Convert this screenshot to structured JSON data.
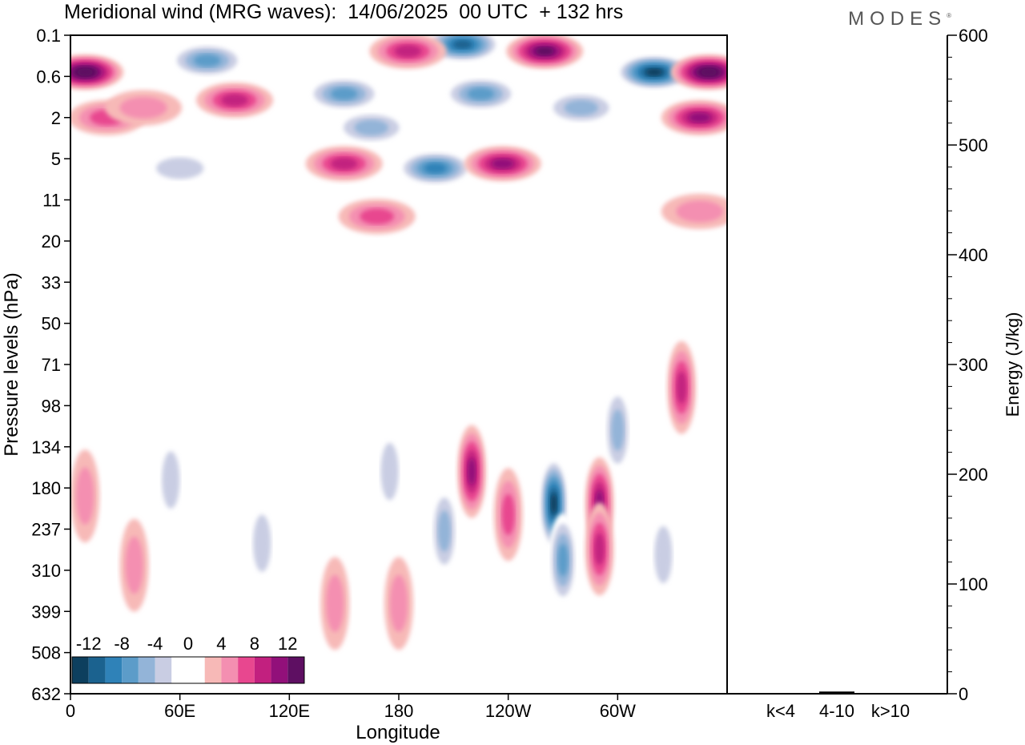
{
  "title": "Meridional wind (MRG waves):  14/06/2025  00 UTC  + 132 hrs",
  "brand": "MODES",
  "brand_mark": "®",
  "colors": {
    "neg_strong": "#0d4a6a",
    "neg_mid": "#2f82b8",
    "neg_light": "#c9cde3",
    "pos_light": "#f7b9b7",
    "pos_mid": "#e8478f",
    "pos_strong": "#6a0f66",
    "frame": "#000000"
  },
  "chart_data": [
    {
      "type": "heatmap",
      "title": "Meridional wind (MRG waves):  14/06/2025  00 UTC  + 132 hrs",
      "xlabel": "Longitude",
      "ylabel": "Pressure levels (hPa)",
      "x_ticks": [
        "0",
        "60E",
        "120E",
        "180",
        "120W",
        "60W"
      ],
      "y_ticks": [
        "0.1",
        "0.6",
        "2",
        "5",
        "11",
        "20",
        "33",
        "50",
        "71",
        "98",
        "134",
        "180",
        "237",
        "310",
        "399",
        "508",
        "632"
      ],
      "colorbar": {
        "labels": [
          "-12",
          "-8",
          "-4",
          "0",
          "4",
          "8",
          "12"
        ],
        "levels": [
          -14,
          -12,
          -10,
          -8,
          -6,
          -4,
          -2,
          2,
          4,
          6,
          8,
          10,
          12,
          14
        ],
        "colors": [
          "#0d3f5e",
          "#1b628f",
          "#2f82b8",
          "#5c9cc9",
          "#93b4d8",
          "#c9cde3",
          "#ffffff",
          "#ffffff",
          "#f7b9b7",
          "#f48fb1",
          "#e8478f",
          "#c2207f",
          "#92107a",
          "#5e0f62"
        ]
      },
      "features": [
        {
          "lon": 8,
          "lev": 0.5,
          "value": 14
        },
        {
          "lon": 20,
          "lev": 2,
          "value": 6
        },
        {
          "lon": 40,
          "lev": 1.5,
          "value": 4
        },
        {
          "lon": 90,
          "lev": 1.2,
          "value": 8
        },
        {
          "lon": 75,
          "lev": 0.3,
          "value": -8
        },
        {
          "lon": 150,
          "lev": 1.0,
          "value": -8
        },
        {
          "lon": 165,
          "lev": 2.5,
          "value": -6
        },
        {
          "lon": 215,
          "lev": 0.15,
          "value": -13
        },
        {
          "lon": 185,
          "lev": 0.2,
          "value": 8
        },
        {
          "lon": 260,
          "lev": 0.2,
          "value": 12
        },
        {
          "lon": 225,
          "lev": 1.0,
          "value": -8
        },
        {
          "lon": 200,
          "lev": 6.0,
          "value": -10
        },
        {
          "lon": 150,
          "lev": 5.5,
          "value": 8
        },
        {
          "lon": 237,
          "lev": 5.5,
          "value": 10
        },
        {
          "lon": 168,
          "lev": 14,
          "value": 6
        },
        {
          "lon": 320,
          "lev": 0.5,
          "value": -14
        },
        {
          "lon": 350,
          "lev": 0.5,
          "value": 14
        },
        {
          "lon": 345,
          "lev": 2.0,
          "value": 10
        },
        {
          "lon": 280,
          "lev": 1.5,
          "value": -6
        },
        {
          "lon": 345,
          "lev": 13,
          "value": 4
        },
        {
          "lon": 60,
          "lev": 6.0,
          "value": -4
        },
        {
          "lon": 335,
          "lev": 85,
          "value": 8
        },
        {
          "lon": 300,
          "lev": 118,
          "value": -6
        },
        {
          "lon": 220,
          "lev": 160,
          "value": 10
        },
        {
          "lon": 240,
          "lev": 215,
          "value": 6
        },
        {
          "lon": 265,
          "lev": 200,
          "value": -14
        },
        {
          "lon": 290,
          "lev": 200,
          "value": 10
        },
        {
          "lon": 290,
          "lev": 270,
          "value": 8
        },
        {
          "lon": 270,
          "lev": 290,
          "value": -8
        },
        {
          "lon": 205,
          "lev": 240,
          "value": -6
        },
        {
          "lon": 325,
          "lev": 280,
          "value": -4
        },
        {
          "lon": 105,
          "lev": 260,
          "value": -4
        },
        {
          "lon": 145,
          "lev": 380,
          "value": 4
        },
        {
          "lon": 180,
          "lev": 380,
          "value": 4
        },
        {
          "lon": 8,
          "lev": 190,
          "value": 4
        },
        {
          "lon": 35,
          "lev": 300,
          "value": 4
        },
        {
          "lon": 55,
          "lev": 170,
          "value": -4
        },
        {
          "lon": 175,
          "lev": 160,
          "value": -4
        }
      ]
    },
    {
      "type": "bar",
      "categories": [
        "k<4",
        "4-10",
        "k>10"
      ],
      "values": [
        0,
        2,
        0
      ],
      "ylabel": "Energy (J/kg)",
      "ylim": [
        0,
        600
      ],
      "y_ticks": [
        "0",
        "100",
        "200",
        "300",
        "400",
        "500",
        "600"
      ]
    }
  ]
}
